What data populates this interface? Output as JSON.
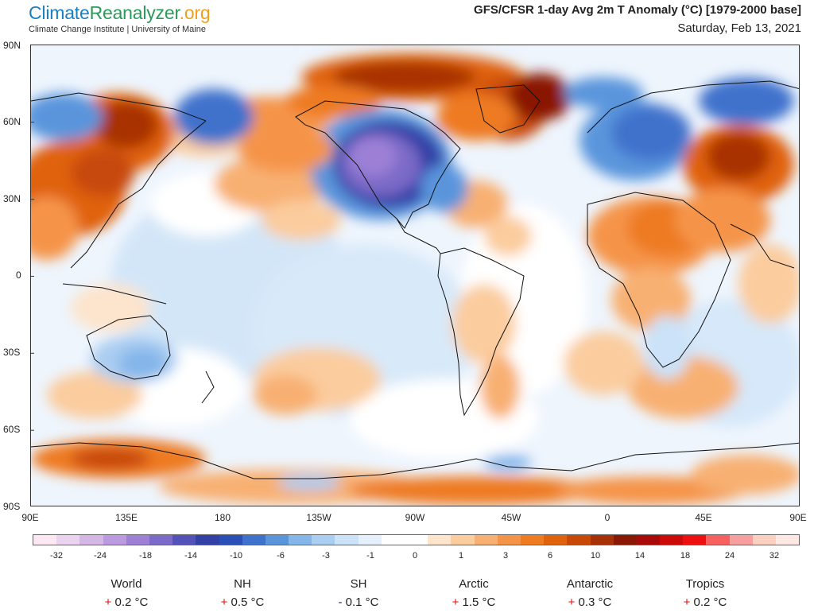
{
  "brand": {
    "name_part1": "Climate",
    "name_part2": "Reanalyzer",
    "name_part3": ".org",
    "subtitle": "Climate Change Institute | University of Maine"
  },
  "title": {
    "main": "GFS/CFSR 1-day Avg 2m T Anomaly (°C) [1979-2000 base]",
    "date": "Saturday, Feb 13, 2021"
  },
  "map": {
    "lat_labels": [
      "90N",
      "60N",
      "30N",
      "0",
      "30S",
      "60S",
      "90S"
    ],
    "lon_labels": [
      "90E",
      "135E",
      "180",
      "135W",
      "90W",
      "45W",
      "0",
      "45E",
      "90E"
    ]
  },
  "colorbar": {
    "labels": [
      "-32",
      "-24",
      "-18",
      "-14",
      "-10",
      "-6",
      "-3",
      "-1",
      "0",
      "1",
      "3",
      "6",
      "10",
      "14",
      "18",
      "24",
      "32"
    ],
    "colors": [
      "#fbe8f2",
      "#ead3ee",
      "#d5b7e6",
      "#bb9ae0",
      "#9d80d6",
      "#7b6ac8",
      "#5252b8",
      "#3340a6",
      "#2a50b8",
      "#3f72cc",
      "#5a95dc",
      "#84b6ea",
      "#aacdf2",
      "#cbe2f8",
      "#e4f0fc",
      "#ffffff",
      "#ffffff",
      "#fde4cc",
      "#fbcc9e",
      "#f8b072",
      "#f59448",
      "#ee7a22",
      "#e0620c",
      "#c84808",
      "#a83006",
      "#8a1804",
      "#a80a0a",
      "#cc0a0a",
      "#ee1010",
      "#f86060",
      "#f8a0a0",
      "#fbd0c0",
      "#fde8e4"
    ]
  },
  "stats": [
    {
      "name": "World",
      "sign": "+",
      "value": "0.2 °C"
    },
    {
      "name": "NH",
      "sign": "+",
      "value": "0.5 °C"
    },
    {
      "name": "SH",
      "sign": "-",
      "value": "0.1 °C"
    },
    {
      "name": "Arctic",
      "sign": "+",
      "value": "1.5 °C"
    },
    {
      "name": "Antarctic",
      "sign": "+",
      "value": "0.3 °C"
    },
    {
      "name": "Tropics",
      "sign": "+",
      "value": "0.2 °C"
    }
  ]
}
